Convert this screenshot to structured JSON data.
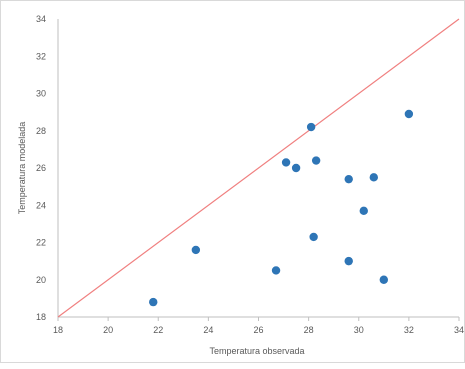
{
  "chart_data": {
    "type": "scatter",
    "title": "",
    "xlabel": "Temperatura observada",
    "ylabel": "Temperatura modelada",
    "xlim": [
      18,
      34
    ],
    "ylim": [
      18,
      34
    ],
    "xticks": [
      "18",
      "20",
      "22",
      "24",
      "26",
      "28",
      "30",
      "32",
      "34"
    ],
    "yticks": [
      "18",
      "20",
      "22",
      "24",
      "26",
      "28",
      "30",
      "32",
      "34"
    ],
    "grid": false,
    "legend": "none",
    "series": [
      {
        "x": [
          21.8,
          23.5,
          26.7,
          27.1,
          27.5,
          28.1,
          28.2,
          28.3,
          29.6,
          29.6,
          30.2,
          30.6,
          31.0,
          32.0
        ],
        "y": [
          18.8,
          21.6,
          20.5,
          26.3,
          26.0,
          28.2,
          22.3,
          26.4,
          21.0,
          25.4,
          23.7,
          25.5,
          20.0,
          28.9
        ]
      }
    ],
    "reference_line": {
      "x": [
        18,
        34
      ],
      "y": [
        18,
        34
      ]
    },
    "colors": {
      "points": "#2e75b6",
      "reference_line": "#f08080",
      "axis": "#bfbfbf",
      "text": "#595959"
    }
  }
}
